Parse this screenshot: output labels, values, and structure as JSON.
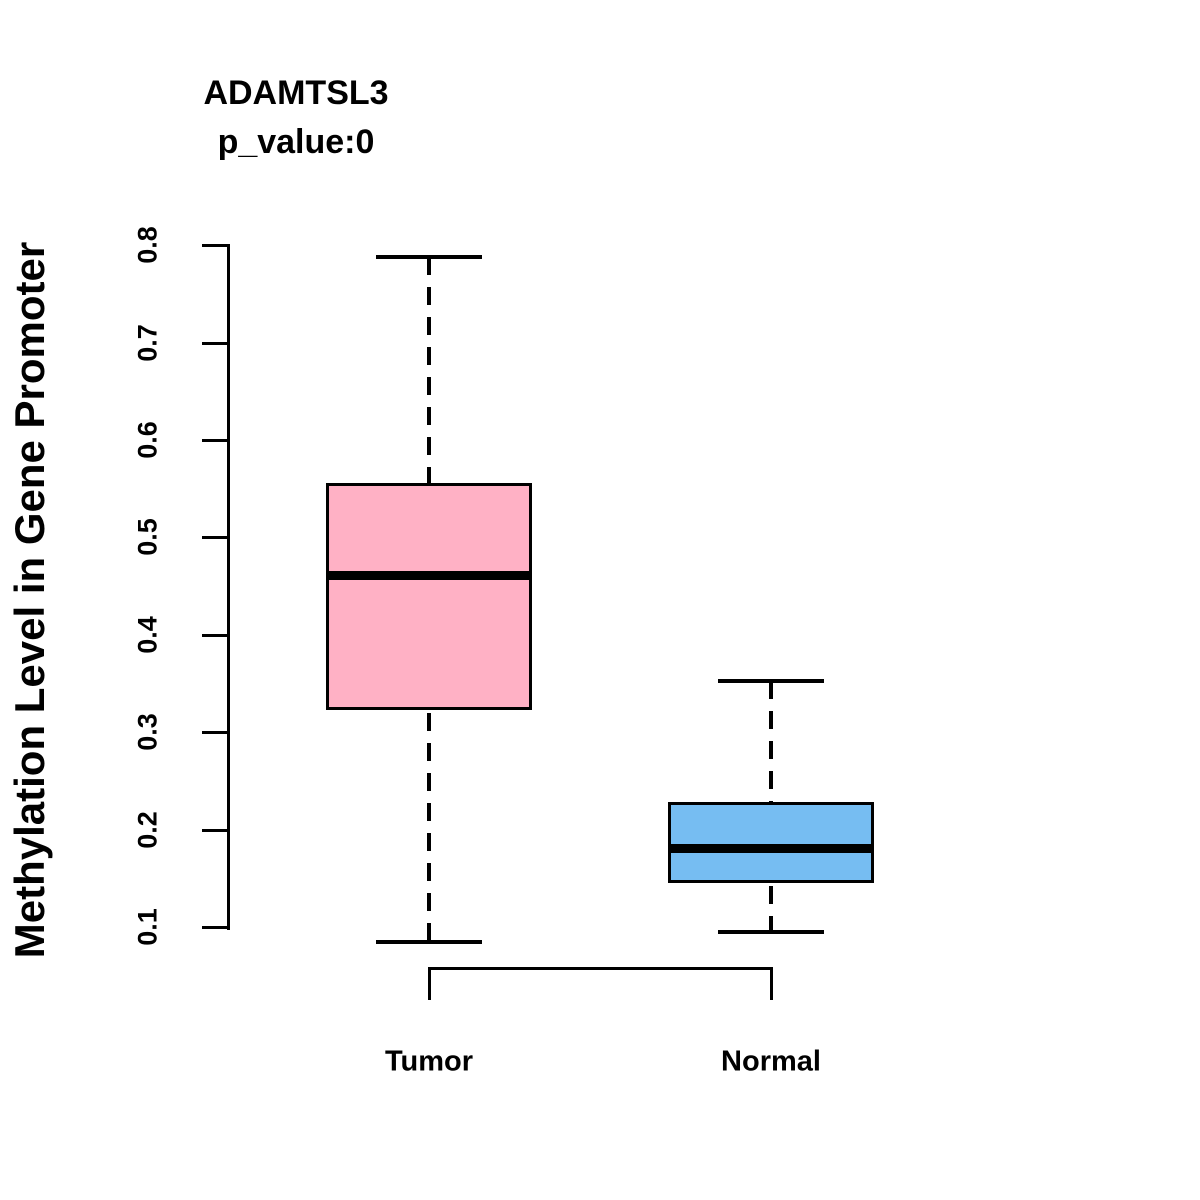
{
  "title": "ADAMTSL3",
  "subtitle": "p_value:0",
  "chart_data": {
    "type": "boxplot",
    "title": "ADAMTSL3",
    "subtitle": "p_value:0",
    "xlabel": "",
    "ylabel": "Methylation Level in Gene Promoter",
    "categories": [
      "Tumor",
      "Normal"
    ],
    "yticks": [
      0.1,
      0.2,
      0.3,
      0.4,
      0.5,
      0.6,
      0.7,
      0.8
    ],
    "ylim": [
      0.05,
      0.82
    ],
    "grid": false,
    "legend_position": "none",
    "box_line_color": "#000000",
    "whisker_style": "dashed",
    "series": [
      {
        "name": "Tumor",
        "whisker_low": 0.085,
        "q1": 0.323,
        "median": 0.461,
        "q3": 0.556,
        "whisker_high": 0.788,
        "fill_color": "#FFB1C5"
      },
      {
        "name": "Normal",
        "whisker_low": 0.095,
        "q1": 0.145,
        "median": 0.181,
        "q3": 0.228,
        "whisker_high": 0.353,
        "fill_color": "#76BDF2"
      }
    ]
  }
}
